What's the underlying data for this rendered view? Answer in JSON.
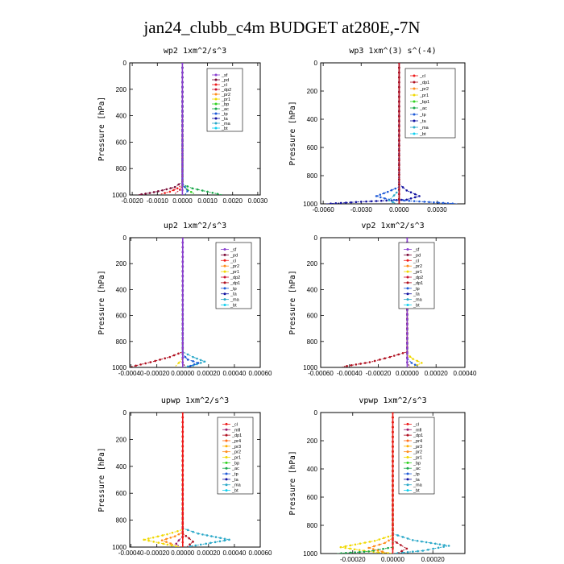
{
  "figure": {
    "title": "jan24_clubb_c4m  BUDGET at280E,-7N"
  },
  "colors": {
    "_sf": "#8a3fd0",
    "_pd": "#7a0d3a",
    "_cl": "#ef1a1a",
    "_dp2": "#c8102e",
    "_pr2": "#ff8c1a",
    "_pr1": "#f0d800",
    "_bp": "#2fd21f",
    "_ac": "#1aa84a",
    "_tp": "#1e5ad8",
    "_ta": "#1010a0",
    "_ma": "#2aa8c8",
    "_bt": "#10d0f0",
    "_dp1": "#b01020",
    "_bp1": "#2fd21f",
    "_mfl": "#9a1a6a",
    "_dp4": "#d01838",
    "_pr4": "#ff6e1a",
    "_pr3": "#ffb000"
  },
  "chart_data": [
    {
      "type": "line",
      "title": "wp2  1xm^2/s^3",
      "ylabel": "Pressure [hPa]",
      "xlim": [
        -0.0021,
        0.0031
      ],
      "ylim": [
        1000,
        0
      ],
      "xticks": [
        -0.002,
        -0.001,
        0.0,
        0.001,
        0.002,
        0.003
      ],
      "xtick_labels": [
        "-0.0020",
        "-0.0010",
        "0.0000",
        "0.0010",
        "0.0020",
        "0.0030"
      ],
      "yticks": [
        0,
        200,
        400,
        600,
        800,
        1000
      ],
      "ytick_labels": [
        "0",
        "200",
        "400",
        "600",
        "800",
        "1000"
      ],
      "legend_position": "top-right",
      "legend": [
        "_sf",
        "_pd",
        "_cl",
        "_dp2",
        "_pr2",
        "_pr1",
        "_bp",
        "_ac",
        "_tp",
        "_ta",
        "_ma",
        "_bt"
      ],
      "series": [
        {
          "name": "_pd",
          "x": [
            0,
            0,
            -0.0003,
            -0.0008,
            -0.0013,
            -0.0018
          ],
          "y": [
            0,
            900,
            940,
            965,
            985,
            1000
          ]
        },
        {
          "name": "_cl",
          "x": [
            0,
            0,
            -0.0002,
            -0.0005,
            -0.0009
          ],
          "y": [
            0,
            920,
            950,
            975,
            995
          ]
        },
        {
          "name": "_dp2",
          "x": [
            0,
            0,
            -0.0001,
            -0.0003
          ],
          "y": [
            0,
            930,
            960,
            990
          ]
        },
        {
          "name": "_ac",
          "x": [
            0,
            0,
            0.0004,
            0.001,
            0.0016
          ],
          "y": [
            0,
            920,
            950,
            975,
            1000
          ]
        },
        {
          "name": "_bp",
          "x": [
            0,
            0,
            0.0002,
            0.0005
          ],
          "y": [
            0,
            930,
            960,
            995
          ]
        },
        {
          "name": "_tp",
          "x": [
            0,
            0,
            0.0001,
            0.0002,
            0.0001
          ],
          "y": [
            0,
            910,
            940,
            970,
            1000
          ]
        },
        {
          "name": "_sf",
          "x": [
            0,
            0
          ],
          "y": [
            0,
            1000
          ]
        }
      ]
    },
    {
      "type": "line",
      "title": "wp3  1xm^(3) s^(-4)",
      "ylabel": "Pressure [hPa]",
      "xlim": [
        -0.0062,
        0.0052
      ],
      "ylim": [
        1000,
        0
      ],
      "xticks": [
        -0.006,
        -0.003,
        0.0,
        0.003
      ],
      "xtick_labels": [
        "-0.0060",
        "-0.0030",
        "0.0000",
        "0.0030"
      ],
      "yticks": [
        0,
        200,
        400,
        600,
        800,
        1000
      ],
      "ytick_labels": [
        "0",
        "200",
        "400",
        "600",
        "800",
        "1000"
      ],
      "legend_position": "top-right",
      "legend": [
        "_cl",
        "_dp1",
        "_pr2",
        "_pr1",
        "_bp1",
        "_ac",
        "_tp",
        "_ta",
        "_ma",
        "_bt"
      ],
      "series": [
        {
          "name": "_ta",
          "x": [
            0,
            0,
            0.0006,
            0.0016,
            0.0006,
            -0.003,
            -0.0058
          ],
          "y": [
            0,
            860,
            905,
            945,
            970,
            985,
            1000
          ]
        },
        {
          "name": "_tp",
          "x": [
            0,
            0,
            -0.0009,
            -0.0018,
            -0.0008,
            0.002,
            0.0046
          ],
          "y": [
            0,
            880,
            915,
            945,
            970,
            985,
            1000
          ]
        },
        {
          "name": "_ma",
          "x": [
            0,
            0,
            -0.0004,
            -0.0008,
            -0.0002
          ],
          "y": [
            0,
            900,
            940,
            975,
            1000
          ]
        },
        {
          "name": "_cl",
          "x": [
            0,
            0
          ],
          "y": [
            0,
            1000
          ]
        },
        {
          "name": "_dp1",
          "x": [
            0,
            0
          ],
          "y": [
            0,
            1000
          ]
        }
      ]
    },
    {
      "type": "line",
      "title": "up2  1xm^2/s^3",
      "ylabel": "Pressure [hPa]",
      "xlim": [
        -0.00041,
        0.0006
      ],
      "ylim": [
        1000,
        0
      ],
      "xticks": [
        -0.0004,
        -0.0002,
        0.0,
        0.0002,
        0.0004,
        0.0006
      ],
      "xtick_labels": [
        "-0.00040",
        "-0.00020",
        "0.00000",
        "0.00020",
        "0.00040",
        "0.00060"
      ],
      "yticks": [
        0,
        200,
        400,
        600,
        800,
        1000
      ],
      "ytick_labels": [
        "0",
        "200",
        "400",
        "600",
        "800",
        "1000"
      ],
      "legend_position": "top-right",
      "legend": [
        "_sf",
        "_pd",
        "_cl",
        "_pr2",
        "_pr1",
        "_dp2",
        "_dp1",
        "_tp",
        "_ta",
        "_ma",
        "_bt"
      ],
      "series": [
        {
          "name": "_dp1",
          "x": [
            0,
            0,
            -0.0001,
            -0.00025,
            -0.0004
          ],
          "y": [
            0,
            880,
            920,
            960,
            995
          ]
        },
        {
          "name": "_ma",
          "x": [
            0,
            0,
            8e-05,
            0.00017,
            8e-05,
            0.0
          ],
          "y": [
            0,
            880,
            920,
            955,
            985,
            1000
          ]
        },
        {
          "name": "_tp",
          "x": [
            0,
            0,
            4e-05,
            0.00012,
            3e-05
          ],
          "y": [
            0,
            900,
            940,
            965,
            1000
          ]
        },
        {
          "name": "_pr1",
          "x": [
            0,
            0,
            -3e-05,
            -6e-05
          ],
          "y": [
            0,
            930,
            965,
            995
          ]
        },
        {
          "name": "_pd",
          "x": [
            0,
            0,
            2e-05
          ],
          "y": [
            0,
            960,
            1000
          ]
        },
        {
          "name": "_sf",
          "x": [
            0,
            0
          ],
          "y": [
            0,
            1000
          ]
        }
      ]
    },
    {
      "type": "line",
      "title": "vp2  1xm^2/s^3",
      "ylabel": "Pressure [hPa]",
      "xlim": [
        -0.0006,
        0.0004
      ],
      "ylim": [
        1000,
        0
      ],
      "xticks": [
        -0.0006,
        -0.0004,
        -0.0002,
        0.0,
        0.0002,
        0.0004
      ],
      "xtick_labels": [
        "-0.00060",
        "-0.00040",
        "-0.00020",
        "0.00000",
        "0.00020",
        "0.00040"
      ],
      "yticks": [
        0,
        200,
        400,
        600,
        800,
        1000
      ],
      "ytick_labels": [
        "0",
        "200",
        "400",
        "600",
        "800",
        "1000"
      ],
      "legend_position": "top-right",
      "legend": [
        "_sf",
        "_pd",
        "_cl",
        "_pr2",
        "_pr1",
        "_dp2",
        "_dp1",
        "_tp",
        "_ta",
        "_ma",
        "_bt"
      ],
      "series": [
        {
          "name": "_dp1",
          "x": [
            0,
            0,
            -0.00012,
            -0.00026,
            -0.00045
          ],
          "y": [
            0,
            880,
            920,
            960,
            995
          ]
        },
        {
          "name": "_pr1",
          "x": [
            0,
            0,
            4e-05,
            0.0001,
            4e-05
          ],
          "y": [
            0,
            900,
            935,
            965,
            1000
          ]
        },
        {
          "name": "_tp",
          "x": [
            0,
            0,
            3e-05,
            8e-05
          ],
          "y": [
            0,
            930,
            965,
            995
          ]
        },
        {
          "name": "_pd",
          "x": [
            0,
            0,
            2e-05
          ],
          "y": [
            0,
            960,
            1000
          ]
        },
        {
          "name": "_sf",
          "x": [
            0,
            0
          ],
          "y": [
            0,
            1000
          ]
        }
      ]
    },
    {
      "type": "line",
      "title": "upwp  1xm^2/s^3",
      "ylabel": "Pressure [hPa]",
      "xlim": [
        -0.00041,
        0.0006
      ],
      "ylim": [
        1000,
        0
      ],
      "xticks": [
        -0.0004,
        -0.0002,
        0.0,
        0.0002,
        0.0004,
        0.0006
      ],
      "xtick_labels": [
        "-0.00040",
        "-0.00020",
        "0.00000",
        "0.00020",
        "0.00040",
        "0.00060"
      ],
      "yticks": [
        0,
        200,
        400,
        600,
        800,
        1000
      ],
      "ytick_labels": [
        "0",
        "200",
        "400",
        "600",
        "800",
        "1000"
      ],
      "legend_position": "top-right",
      "legend": [
        "_cl",
        "_mfl",
        "_dp1",
        "_pr4",
        "_pr3",
        "_pr2",
        "_pr1",
        "_bp",
        "_ac",
        "_tp",
        "_ta",
        "_ma",
        "_bt"
      ],
      "series": [
        {
          "name": "_ma",
          "x": [
            0,
            0,
            0.00012,
            0.00036,
            0.00018,
            2e-05
          ],
          "y": [
            0,
            860,
            900,
            945,
            975,
            1000
          ]
        },
        {
          "name": "_pr1",
          "x": [
            0,
            0,
            -0.00012,
            -0.0003,
            -0.00015,
            -2e-05
          ],
          "y": [
            0,
            870,
            905,
            945,
            975,
            1000
          ]
        },
        {
          "name": "_pr2",
          "x": [
            0,
            0,
            -6e-05,
            -0.00016,
            -6e-05
          ],
          "y": [
            0,
            890,
            920,
            950,
            985
          ]
        },
        {
          "name": "_dp1",
          "x": [
            0,
            0,
            5e-05,
            8e-05,
            3e-05
          ],
          "y": [
            0,
            900,
            935,
            960,
            1000
          ]
        },
        {
          "name": "_mfl",
          "x": [
            0,
            0,
            -3e-05,
            -5e-05,
            -2e-05
          ],
          "y": [
            0,
            920,
            950,
            975,
            1000
          ]
        },
        {
          "name": "_cl",
          "x": [
            0,
            0
          ],
          "y": [
            0,
            1000
          ]
        }
      ]
    },
    {
      "type": "line",
      "title": "vpwp  1xm^2/s^3",
      "ylabel": "Pressure [hPa]",
      "xlim": [
        -0.00036,
        0.00036
      ],
      "ylim": [
        1000,
        0
      ],
      "xticks": [
        -0.0002,
        0.0,
        0.0002
      ],
      "xtick_labels": [
        "-0.00020",
        "0.00000",
        "0.00020"
      ],
      "yticks": [
        0,
        200,
        400,
        600,
        800,
        1000
      ],
      "ytick_labels": [
        "0",
        "200",
        "400",
        "600",
        "800",
        "1000"
      ],
      "legend_position": "top-right",
      "legend": [
        "_cl",
        "_mfl",
        "_dp1",
        "_pr4",
        "_pr3",
        "_pr2",
        "_pr1",
        "_bp",
        "_ac",
        "_tp",
        "_ta",
        "_ma",
        "_bt"
      ],
      "series": [
        {
          "name": "_ma",
          "x": [
            0,
            0,
            0.0001,
            0.00028,
            0.00015,
            0.0
          ],
          "y": [
            0,
            860,
            905,
            945,
            980,
            1000
          ]
        },
        {
          "name": "_pr1",
          "x": [
            0,
            0,
            -9e-05,
            -0.00026,
            -0.00012,
            0.0
          ],
          "y": [
            0,
            870,
            910,
            955,
            985,
            1000
          ]
        },
        {
          "name": "_ac",
          "x": [
            0,
            0,
            -0.00012,
            -0.00028
          ],
          "y": [
            0,
            955,
            985,
            1000
          ]
        },
        {
          "name": "_pr2",
          "x": [
            0,
            0,
            -4e-05,
            -0.00012,
            -3e-05
          ],
          "y": [
            0,
            890,
            925,
            960,
            995
          ]
        },
        {
          "name": "_dp1",
          "x": [
            0,
            0,
            4e-05,
            7e-05,
            2e-05
          ],
          "y": [
            0,
            905,
            940,
            965,
            1000
          ]
        },
        {
          "name": "_cl",
          "x": [
            0,
            0
          ],
          "y": [
            0,
            1000
          ]
        }
      ]
    }
  ]
}
